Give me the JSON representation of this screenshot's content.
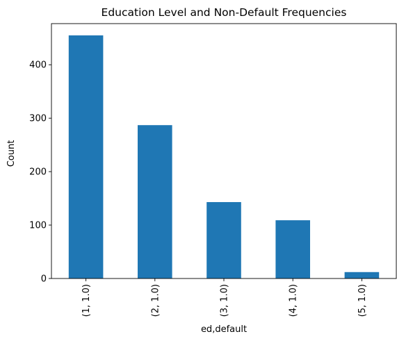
{
  "chart_data": {
    "type": "bar",
    "title": "Education Level and Non-Default Frequencies",
    "xlabel": "ed,default",
    "ylabel": "Count",
    "categories": [
      "(1, 1.0)",
      "(2, 1.0)",
      "(3, 1.0)",
      "(4, 1.0)",
      "(5, 1.0)"
    ],
    "values": [
      455,
      287,
      143,
      109,
      12
    ],
    "ylim": [
      0,
      477
    ],
    "yticks": [
      0,
      100,
      200,
      300,
      400
    ],
    "bar_color": "#1f77b4",
    "grid": false,
    "legend": "none"
  }
}
